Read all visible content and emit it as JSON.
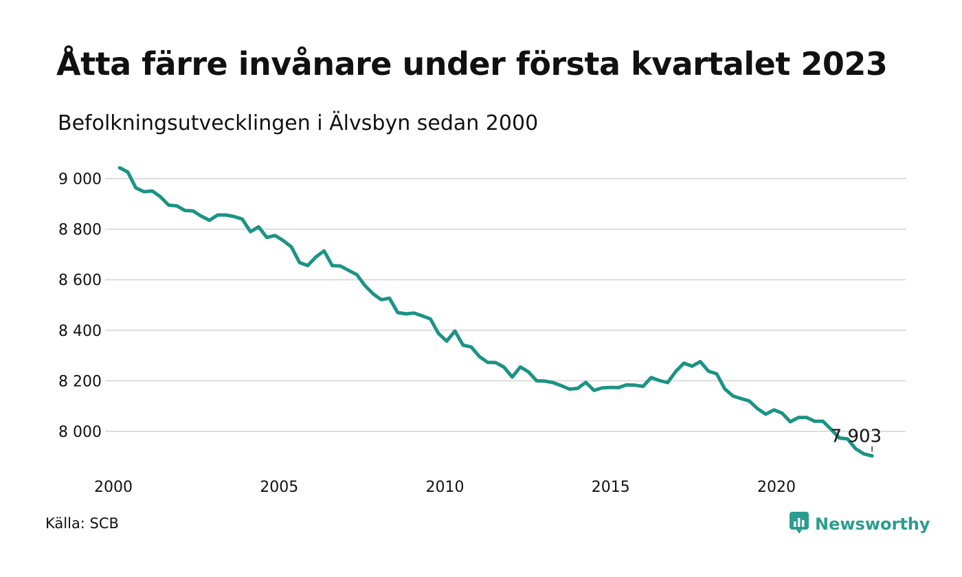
{
  "title": "Åtta färre invånare under första kvartalet 2023",
  "subtitle": "Befolkningsutvecklingen i Älvsbyn sedan 2000",
  "source": "Källa: SCB",
  "brand": {
    "name": "Newsworthy",
    "logo_icon": "newsworthy-logo-icon",
    "color": "#2a9d8f"
  },
  "chart_data": {
    "type": "line",
    "title": "Åtta färre invånare under första kvartalet 2023",
    "subtitle": "Befolkningsutvecklingen i Älvsbyn sedan 2000",
    "xlabel": "",
    "ylabel": "",
    "xlim": [
      2000,
      2023.25
    ],
    "ylim": [
      7900,
      9050
    ],
    "grid": true,
    "line_color": "#1b9385",
    "x_ticks": [
      {
        "value": 2000,
        "label": "2000"
      },
      {
        "value": 2005,
        "label": "2005"
      },
      {
        "value": 2010,
        "label": "2010"
      },
      {
        "value": 2015,
        "label": "2015"
      },
      {
        "value": 2020,
        "label": "2020"
      }
    ],
    "y_ticks": [
      {
        "value": 9000,
        "label": "9 000"
      },
      {
        "value": 8800,
        "label": "8 800"
      },
      {
        "value": 8600,
        "label": "8 600"
      },
      {
        "value": 8400,
        "label": "8 400"
      },
      {
        "value": 8200,
        "label": "8 200"
      },
      {
        "value": 8000,
        "label": "8 000"
      }
    ],
    "series": [
      {
        "x": [
          2000.0,
          2000.25,
          2000.5,
          2000.75,
          2001.0,
          2001.25,
          2001.5,
          2001.75,
          2002.0,
          2002.25,
          2002.5,
          2002.75,
          2003.0,
          2003.25,
          2003.5,
          2003.75,
          2004.0,
          2004.25,
          2004.5,
          2004.75,
          2005.0,
          2005.25,
          2005.5,
          2005.75,
          2006.0,
          2006.25,
          2006.5,
          2006.75,
          2007.0,
          2007.25,
          2007.5,
          2007.75,
          2008.0,
          2008.25,
          2008.5,
          2008.75,
          2009.0,
          2009.25,
          2009.5,
          2009.75,
          2010.0,
          2010.25,
          2010.5,
          2010.75,
          2011.0,
          2011.25,
          2011.5,
          2011.75,
          2012.0,
          2012.25,
          2012.5,
          2012.75,
          2013.0,
          2013.25,
          2013.5,
          2013.75,
          2014.0,
          2014.25,
          2014.5,
          2014.75,
          2015.0,
          2015.25,
          2015.5,
          2015.75,
          2016.0,
          2016.25,
          2016.5,
          2016.75,
          2017.0,
          2017.25,
          2017.5,
          2017.75,
          2018.0,
          2018.25,
          2018.5,
          2018.75,
          2019.0,
          2019.25,
          2019.5,
          2019.75,
          2020.0,
          2020.25,
          2020.5,
          2020.75,
          2021.0,
          2021.25,
          2021.5,
          2021.75,
          2022.0,
          2022.25,
          2022.5,
          2022.75,
          2023.0
        ],
        "y": [
          9043,
          9026,
          8963,
          8948,
          8951,
          8928,
          8895,
          8892,
          8874,
          8872,
          8851,
          8835,
          8856,
          8856,
          8850,
          8840,
          8790,
          8809,
          8767,
          8775,
          8755,
          8730,
          8668,
          8656,
          8690,
          8714,
          8656,
          8654,
          8637,
          8620,
          8577,
          8544,
          8521,
          8527,
          8470,
          8465,
          8468,
          8457,
          8445,
          8387,
          8357,
          8397,
          8341,
          8334,
          8296,
          8273,
          8272,
          8254,
          8215,
          8255,
          8235,
          8200,
          8199,
          8193,
          8181,
          8167,
          8170,
          8194,
          8162,
          8172,
          8174,
          8173,
          8184,
          8183,
          8178,
          8213,
          8201,
          8193,
          8237,
          8270,
          8258,
          8276,
          8238,
          8228,
          8168,
          8140,
          8130,
          8120,
          8090,
          8068,
          8085,
          8072,
          8038,
          8055,
          8055,
          8040,
          8040,
          8008,
          7974,
          7970,
          7931,
          7911,
          7903
        ]
      }
    ],
    "annotation": {
      "x": 2023.0,
      "y": 7903,
      "label": "7 903"
    }
  }
}
